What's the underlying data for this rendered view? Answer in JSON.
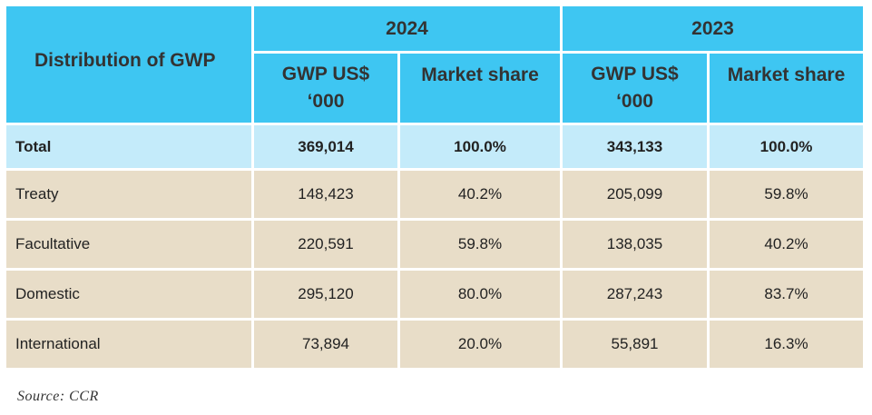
{
  "table": {
    "corner_label": "Distribution of GWP",
    "years": [
      "2024",
      "2023"
    ],
    "subheaders": {
      "gwp_line1": "GWP US$",
      "gwp_line2": "‘000",
      "share": "Market share"
    },
    "rows": [
      {
        "label": "Total",
        "gwp_2024": "369,014",
        "share_2024": "100.0%",
        "gwp_2023": "343,133",
        "share_2023": "100.0%"
      },
      {
        "label": "Treaty",
        "gwp_2024": "148,423",
        "share_2024": "40.2%",
        "gwp_2023": "205,099",
        "share_2023": "59.8%"
      },
      {
        "label": "Facultative",
        "gwp_2024": "220,591",
        "share_2024": "59.8%",
        "gwp_2023": "138,035",
        "share_2023": "40.2%"
      },
      {
        "label": "Domestic",
        "gwp_2024": "295,120",
        "share_2024": "80.0%",
        "gwp_2023": "287,243",
        "share_2023": "83.7%"
      },
      {
        "label": "International",
        "gwp_2024": "73,894",
        "share_2024": "20.0%",
        "gwp_2023": "55,891",
        "share_2023": "16.3%"
      }
    ]
  },
  "source": "Source: CCR",
  "colors": {
    "header": "#3ec6f2",
    "total_row": "#c4ebfa",
    "body_row": "#e8ddc8"
  }
}
